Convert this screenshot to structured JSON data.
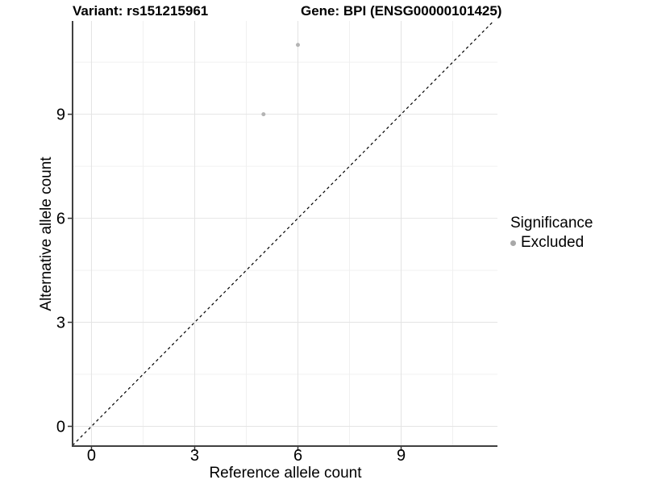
{
  "chart_data": {
    "type": "scatter",
    "title_left": "Variant: rs151215961",
    "title_right": "Gene: BPI (ENSG00000101425)",
    "xlabel": "Reference allele count",
    "ylabel": "Alternative allele count",
    "xlim": [
      -0.55,
      11.8
    ],
    "ylim": [
      -0.57,
      11.69
    ],
    "x_ticks": [
      0,
      3,
      6,
      9
    ],
    "y_ticks": [
      0,
      3,
      6,
      9
    ],
    "x_minor_ticks": [
      1.5,
      4.5,
      7.5,
      10.5
    ],
    "y_minor_ticks": [
      1.5,
      4.5,
      7.5,
      10.5
    ],
    "grid": "major+minor",
    "series": [
      {
        "name": "Excluded",
        "marker_color": "#b4b4b4",
        "points": [
          {
            "x": 5,
            "y": 9
          },
          {
            "x": 6,
            "y": 11
          }
        ]
      }
    ],
    "identity_line": {
      "slope": 1,
      "intercept": 0,
      "style": "dashed",
      "color": "#000000"
    },
    "legend": {
      "title": "Significance",
      "position": "right",
      "items": [
        {
          "label": "Excluded",
          "marker_color": "#a8a8a8"
        }
      ]
    },
    "style": {
      "major_grid_color": "#e4e4e4",
      "minor_grid_color": "#f0f0f0",
      "axis_line_color": "#404040",
      "tick_color": "#333333",
      "point_radius": 2.5
    }
  }
}
